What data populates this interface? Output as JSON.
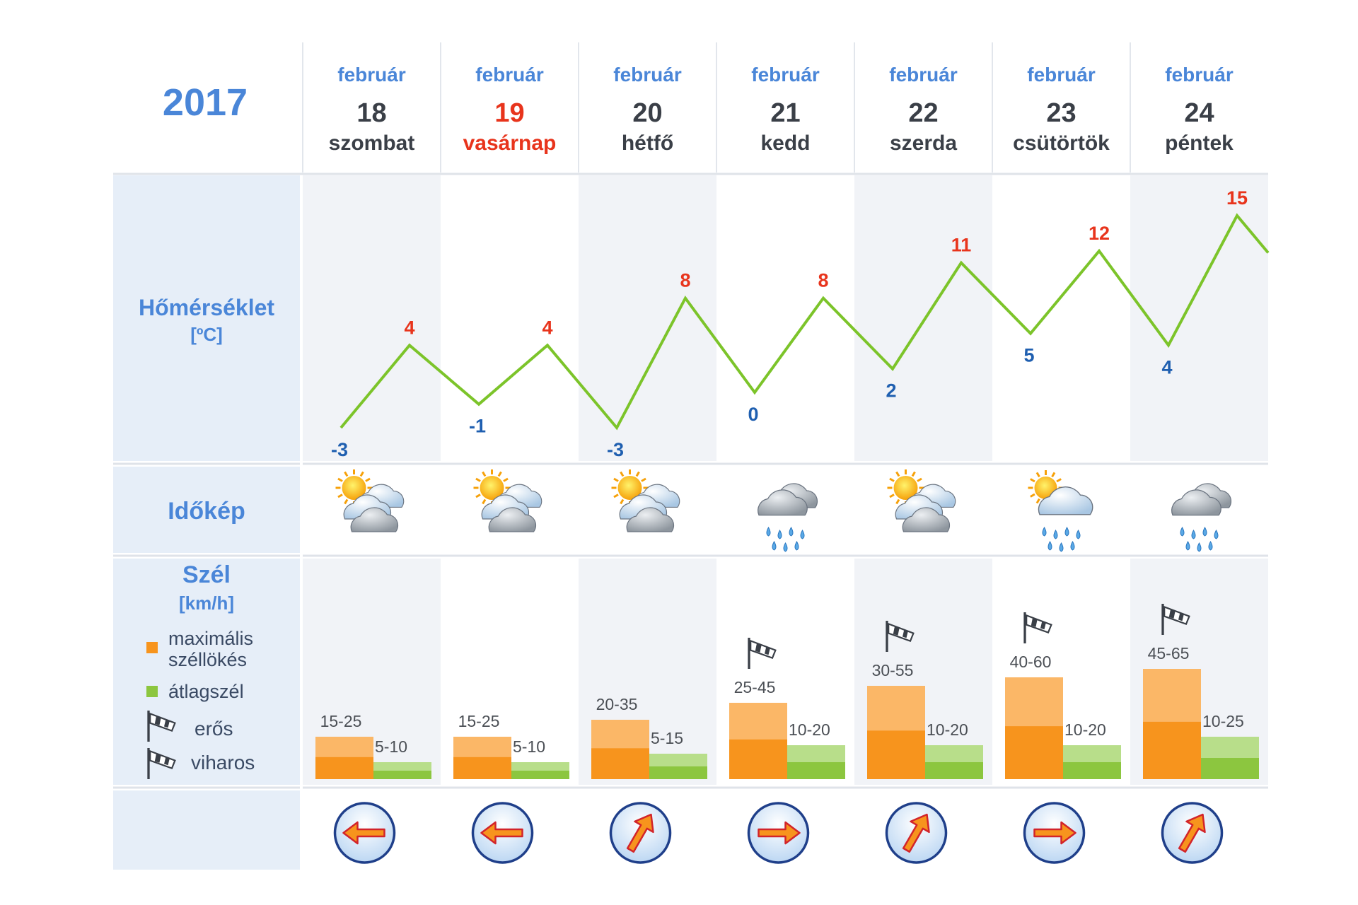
{
  "header": {
    "year": "2017"
  },
  "days": [
    {
      "month": "február",
      "date": "18",
      "weekday": "szombat",
      "weekend": true,
      "temp_min": "-3",
      "temp_max": "4",
      "weather": "partly-cloudy",
      "wind_gust": "15-25",
      "wind_avg": "5-10",
      "wind_dir": "west-arrow",
      "wind_warning": "none",
      "gust_value": 25,
      "avg_value": 10
    },
    {
      "month": "február",
      "date": "19",
      "weekday": "vasárnap",
      "weekend": true,
      "temp_min": "-1",
      "temp_max": "4",
      "weather": "partly-cloudy",
      "wind_gust": "15-25",
      "wind_avg": "5-10",
      "wind_dir": "west-arrow",
      "wind_warning": "none",
      "gust_value": 25,
      "avg_value": 10
    },
    {
      "month": "február",
      "date": "20",
      "weekday": "hétfő",
      "weekend": false,
      "temp_min": "-3",
      "temp_max": "8",
      "weather": "partly-cloudy",
      "wind_gust": "20-35",
      "wind_avg": "5-15",
      "wind_dir": "northeast-arrow",
      "wind_warning": "none",
      "gust_value": 35,
      "avg_value": 15
    },
    {
      "month": "február",
      "date": "21",
      "weekday": "kedd",
      "weekend": false,
      "temp_min": "0",
      "temp_max": "8",
      "weather": "rain",
      "wind_gust": "25-45",
      "wind_avg": "10-20",
      "wind_dir": "east-arrow",
      "wind_warning": "erős",
      "gust_value": 45,
      "avg_value": 20
    },
    {
      "month": "február",
      "date": "22",
      "weekday": "szerda",
      "weekend": false,
      "temp_min": "2",
      "temp_max": "11",
      "weather": "partly-cloudy",
      "wind_gust": "30-55",
      "wind_avg": "10-20",
      "wind_dir": "northeast-arrow",
      "wind_warning": "erős",
      "gust_value": 55,
      "avg_value": 20
    },
    {
      "month": "február",
      "date": "23",
      "weekday": "csütörtök",
      "weekend": false,
      "temp_min": "5",
      "temp_max": "12",
      "weather": "sun-rain",
      "wind_gust": "40-60",
      "wind_avg": "10-20",
      "wind_dir": "east-arrow",
      "wind_warning": "erős",
      "gust_value": 60,
      "avg_value": 20
    },
    {
      "month": "február",
      "date": "24",
      "weekday": "péntek",
      "weekend": false,
      "temp_min": "4",
      "temp_max": "15",
      "weather": "rain",
      "wind_gust": "45-65",
      "wind_avg": "10-25",
      "wind_dir": "northeast-arrow",
      "wind_warning": "erős",
      "gust_value": 65,
      "avg_value": 25
    }
  ],
  "labels": {
    "temperature": "Hőmérséklet",
    "temperature_unit": "[ºC]",
    "weather": "Időkép",
    "wind": "Szél",
    "wind_unit": "[km/h]",
    "legend_gust_1": "maximális",
    "legend_gust_2": "széllökés",
    "legend_avg": "átlagszél",
    "legend_strong": "erős",
    "legend_storm": "viharos"
  },
  "colors": {
    "accent_blue": "#4a86d8",
    "temp_max": "#e8341c",
    "temp_min": "#1f5fb0",
    "temp_line": "#7cc42a",
    "gust": "#f7941d",
    "gust_light": "#fbb767",
    "avg": "#8cc63f",
    "avg_light": "#b8de8a",
    "label_bg": "#e6eef8",
    "band_bg": "#f1f3f7",
    "weekend": "#e8341c"
  }
}
